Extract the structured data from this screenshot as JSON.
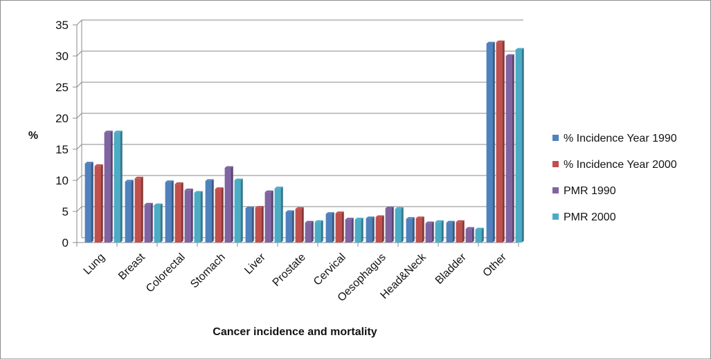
{
  "chart_data": {
    "type": "bar",
    "title": "",
    "xlabel": "Cancer incidence and mortality",
    "ylabel": "%",
    "ylim": [
      0,
      35
    ],
    "yticks": [
      0,
      5,
      10,
      15,
      20,
      25,
      30,
      35
    ],
    "categories": [
      "Lung",
      "Breast",
      "Colorectal",
      "Stomach",
      "Liver",
      "Prostate",
      "Cervical",
      "Oesophagus",
      "Head&Neck",
      "Bladder",
      "Other"
    ],
    "series": [
      {
        "name": "% Incidence Year 1990",
        "color": "#4F81BD",
        "values": [
          12.7,
          9.8,
          9.7,
          9.9,
          5.5,
          4.9,
          4.6,
          3.9,
          3.8,
          3.2,
          32.0
        ]
      },
      {
        "name": "% Incidence Year 2000",
        "color": "#C0504D",
        "values": [
          12.3,
          10.3,
          9.4,
          8.6,
          5.6,
          5.4,
          4.7,
          4.1,
          3.9,
          3.3,
          32.2
        ]
      },
      {
        "name": "PMR 1990",
        "color": "#8064A2",
        "values": [
          17.7,
          6.1,
          8.4,
          12.0,
          8.1,
          3.2,
          3.7,
          5.5,
          3.1,
          2.2,
          30.0
        ]
      },
      {
        "name": "PMR 2000",
        "color": "#4BACC6",
        "values": [
          17.7,
          6.0,
          8.0,
          10.0,
          8.7,
          3.3,
          3.7,
          5.4,
          3.3,
          2.1,
          31.0
        ]
      }
    ],
    "legend": "right",
    "grid": true
  }
}
